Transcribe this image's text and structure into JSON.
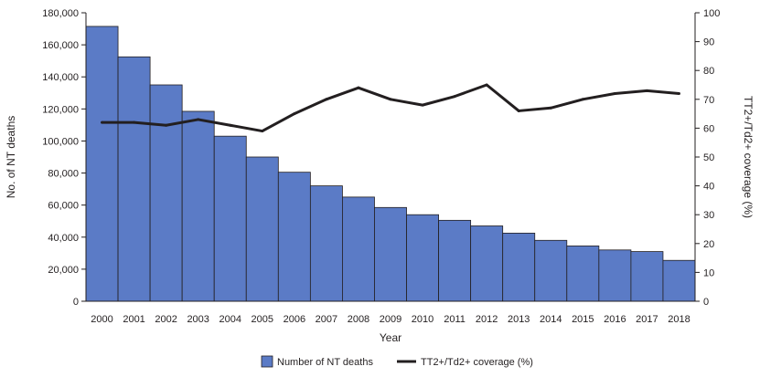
{
  "chart_data": {
    "type": "bar",
    "title": "",
    "xlabel": "Year",
    "ylabel": "No. of NT deaths",
    "y2label": "TT2+/Td2+ coverage (%)",
    "ylim": [
      0,
      180000
    ],
    "y2lim": [
      0,
      100
    ],
    "yticks": [
      "0",
      "20,000",
      "40,000",
      "60,000",
      "80,000",
      "100,000",
      "120,000",
      "140,000",
      "160,000",
      "180,000"
    ],
    "y2ticks": [
      "0",
      "10",
      "20",
      "30",
      "40",
      "50",
      "60",
      "70",
      "80",
      "90",
      "100"
    ],
    "grid": false,
    "legend_position": "bottom",
    "categories": [
      "2000",
      "2001",
      "2002",
      "2003",
      "2004",
      "2005",
      "2006",
      "2007",
      "2008",
      "2009",
      "2010",
      "2011",
      "2012",
      "2013",
      "2014",
      "2015",
      "2016",
      "2017",
      "2018"
    ],
    "series": [
      {
        "name": "Number of NT deaths",
        "type": "bar",
        "axis": "left",
        "color": "#5b7bc6",
        "values": [
          171500,
          152500,
          135000,
          118500,
          103000,
          90000,
          80500,
          72000,
          65000,
          58500,
          54000,
          50500,
          47000,
          42500,
          38000,
          34500,
          32000,
          31000,
          25500
        ]
      },
      {
        "name": "TT2+/Td2+ coverage (%)",
        "type": "line",
        "axis": "right",
        "color": "#231f20",
        "values": [
          62,
          62,
          61,
          63,
          61,
          59,
          65,
          70,
          74,
          70,
          68,
          71,
          75,
          66,
          67,
          70,
          72,
          73,
          72
        ]
      }
    ]
  }
}
